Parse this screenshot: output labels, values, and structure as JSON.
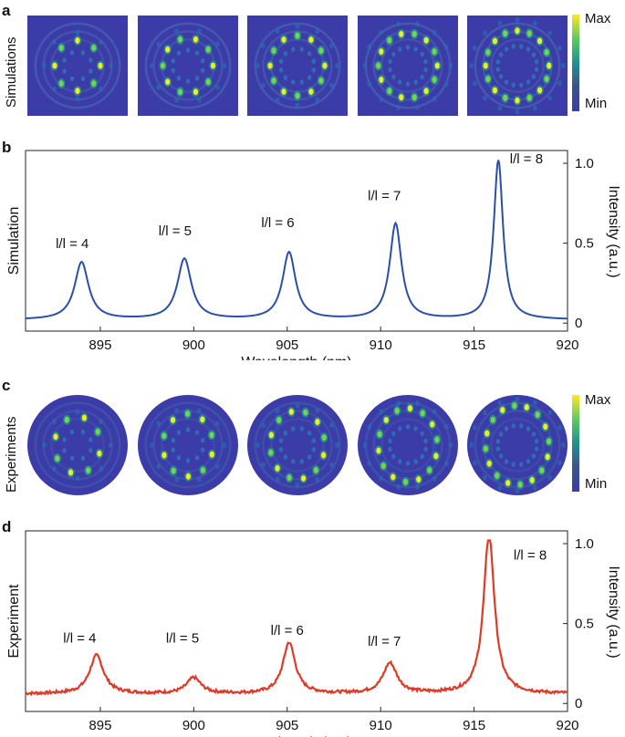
{
  "panels": {
    "a": {
      "letter": "a",
      "ylabel": "Simulations",
      "colorbar": {
        "max_label": "Max",
        "min_label": "Min"
      },
      "images": [
        {
          "charge": 4,
          "lobes": 8
        },
        {
          "charge": 5,
          "lobes": 10
        },
        {
          "charge": 6,
          "lobes": 12
        },
        {
          "charge": 7,
          "lobes": 14
        },
        {
          "charge": 8,
          "lobes": 16
        }
      ]
    },
    "b": {
      "letter": "b"
    },
    "c": {
      "letter": "c",
      "ylabel": "Experiments",
      "colorbar": {
        "max_label": "Max",
        "min_label": "Min"
      },
      "images": [
        {
          "charge": 4,
          "lobes": 8
        },
        {
          "charge": 5,
          "lobes": 10
        },
        {
          "charge": 6,
          "lobes": 12
        },
        {
          "charge": 7,
          "lobes": 14
        },
        {
          "charge": 8,
          "lobes": 16
        }
      ]
    },
    "d": {
      "letter": "d"
    }
  },
  "chart_data": [
    {
      "type": "line",
      "panel": "b",
      "xlabel": "Wavelength (nm)",
      "ylabel_left": "Simulation",
      "ylabel_right": "Intensity (a.u.)",
      "xlim": [
        891,
        920
      ],
      "ylim": [
        -0.05,
        1.08
      ],
      "xticks": [
        895,
        900,
        905,
        910,
        915,
        920
      ],
      "yticks": [
        0,
        0.5,
        1.0
      ],
      "ytick_labels": [
        "0",
        "0.5",
        "1.0"
      ],
      "series": [
        {
          "color": "#2b4fa8",
          "baseline": 0.02,
          "peaks": [
            {
              "x": 894.0,
              "y": 0.36,
              "width": 0.45
            },
            {
              "x": 899.5,
              "y": 0.38,
              "width": 0.45
            },
            {
              "x": 905.1,
              "y": 0.42,
              "width": 0.42
            },
            {
              "x": 910.8,
              "y": 0.6,
              "width": 0.38
            },
            {
              "x": 916.3,
              "y": 1.0,
              "width": 0.3
            }
          ]
        }
      ],
      "annotations": [
        {
          "text": "l/l = 4",
          "x": 893.5,
          "y": 0.47
        },
        {
          "text": "l/l = 5",
          "x": 899.0,
          "y": 0.55
        },
        {
          "text": "l/l = 6",
          "x": 904.5,
          "y": 0.6
        },
        {
          "text": "l/l = 7",
          "x": 910.2,
          "y": 0.77
        },
        {
          "text": "l/l = 8",
          "x": 917.8,
          "y": 1.0
        }
      ]
    },
    {
      "type": "line",
      "panel": "d",
      "xlabel": "Wavelength (nm)",
      "ylabel_left": "Experiment",
      "ylabel_right": "Intensity (a.u.)",
      "xlim": [
        891,
        920
      ],
      "ylim": [
        -0.05,
        1.08
      ],
      "xticks": [
        895,
        900,
        905,
        910,
        915,
        920
      ],
      "yticks": [
        0,
        0.5,
        1.0
      ],
      "ytick_labels": [
        "0",
        "0.5",
        "1.0"
      ],
      "series": [
        {
          "color": "#e03a27",
          "baseline": 0.06,
          "peaks": [
            {
              "x": 894.8,
              "y": 0.24,
              "width": 0.45
            },
            {
              "x": 900.0,
              "y": 0.1,
              "width": 0.45
            },
            {
              "x": 905.1,
              "y": 0.32,
              "width": 0.4
            },
            {
              "x": 910.5,
              "y": 0.19,
              "width": 0.45
            },
            {
              "x": 915.8,
              "y": 1.0,
              "width": 0.35
            }
          ]
        }
      ],
      "annotations": [
        {
          "text": "l/l = 4",
          "x": 893.9,
          "y": 0.38
        },
        {
          "text": "l/l = 5",
          "x": 899.4,
          "y": 0.38
        },
        {
          "text": "l/l = 6",
          "x": 905.0,
          "y": 0.43
        },
        {
          "text": "l/l = 7",
          "x": 910.2,
          "y": 0.36
        },
        {
          "text": "l/l = 8",
          "x": 918.0,
          "y": 0.9
        }
      ]
    }
  ]
}
